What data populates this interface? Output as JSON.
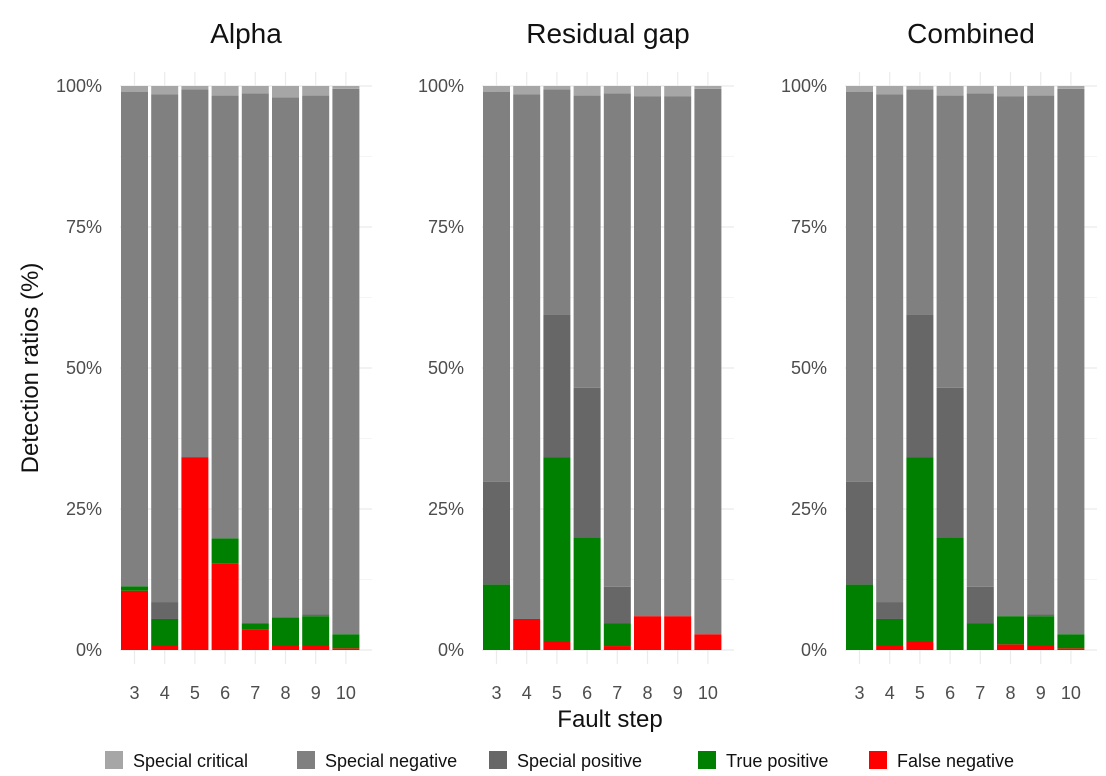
{
  "chart_data": {
    "type": "bar",
    "stacked": true,
    "ylabel": "Detection ratios (%)",
    "xlabel": "Fault step",
    "ylim": [
      0,
      1
    ],
    "y_ticks": [
      {
        "value": 0,
        "label": "0%"
      },
      {
        "value": 0.25,
        "label": "25%"
      },
      {
        "value": 0.5,
        "label": "50%"
      },
      {
        "value": 0.75,
        "label": "75%"
      },
      {
        "value": 1,
        "label": "100%"
      }
    ],
    "categories": [
      "3",
      "4",
      "5",
      "6",
      "7",
      "8",
      "9",
      "10"
    ],
    "grid": true,
    "legend_position": "bottom",
    "stack_order": [
      "False negative",
      "True positive",
      "Special positive",
      "Special negative",
      "Special critical"
    ],
    "legend": [
      {
        "name": "Special critical",
        "color": "#a6a6a6"
      },
      {
        "name": "Special negative",
        "color": "#808080"
      },
      {
        "name": "Special positive",
        "color": "#676767"
      },
      {
        "name": "True positive",
        "color": "#008000"
      },
      {
        "name": "False negative",
        "color": "#ff0000"
      }
    ],
    "panels": [
      {
        "title": "Alpha",
        "series": [
          {
            "name": "False negative",
            "values": [
              0.105,
              0.008,
              0.342,
              0.153,
              0.037,
              0.008,
              0.008,
              0.003
            ]
          },
          {
            "name": "True positive",
            "values": [
              0.008,
              0.047,
              0.0,
              0.045,
              0.01,
              0.05,
              0.052,
              0.025
            ]
          },
          {
            "name": "Special positive",
            "values": [
              0.0,
              0.03,
              0.0,
              0.0,
              0.0,
              0.0,
              0.003,
              0.0
            ]
          },
          {
            "name": "Special negative",
            "values": [
              0.877,
              0.9,
              0.652,
              0.785,
              0.94,
              0.922,
              0.92,
              0.967
            ]
          },
          {
            "name": "Special critical",
            "values": [
              0.01,
              0.015,
              0.006,
              0.017,
              0.013,
              0.02,
              0.017,
              0.005
            ]
          }
        ]
      },
      {
        "title": "Residual gap",
        "series": [
          {
            "name": "False negative",
            "values": [
              0.0,
              0.055,
              0.016,
              0.0,
              0.007,
              0.06,
              0.06,
              0.028
            ]
          },
          {
            "name": "True positive",
            "values": [
              0.116,
              0.0,
              0.326,
              0.2,
              0.04,
              0.0,
              0.0,
              0.0
            ]
          },
          {
            "name": "Special positive",
            "values": [
              0.182,
              0.0,
              0.252,
              0.265,
              0.065,
              0.0,
              0.0,
              0.0
            ]
          },
          {
            "name": "Special negative",
            "values": [
              0.692,
              0.93,
              0.4,
              0.518,
              0.875,
              0.922,
              0.922,
              0.967
            ]
          },
          {
            "name": "Special critical",
            "values": [
              0.01,
              0.015,
              0.006,
              0.017,
              0.013,
              0.018,
              0.018,
              0.005
            ]
          }
        ]
      },
      {
        "title": "Combined",
        "series": [
          {
            "name": "False negative",
            "values": [
              0.0,
              0.008,
              0.016,
              0.0,
              0.0,
              0.01,
              0.008,
              0.003
            ]
          },
          {
            "name": "True positive",
            "values": [
              0.116,
              0.047,
              0.326,
              0.2,
              0.047,
              0.05,
              0.052,
              0.025
            ]
          },
          {
            "name": "Special positive",
            "values": [
              0.182,
              0.03,
              0.252,
              0.265,
              0.065,
              0.0,
              0.003,
              0.0
            ]
          },
          {
            "name": "Special negative",
            "values": [
              0.692,
              0.9,
              0.4,
              0.518,
              0.875,
              0.922,
              0.92,
              0.967
            ]
          },
          {
            "name": "Special critical",
            "values": [
              0.01,
              0.015,
              0.006,
              0.017,
              0.013,
              0.018,
              0.017,
              0.005
            ]
          }
        ]
      }
    ]
  }
}
